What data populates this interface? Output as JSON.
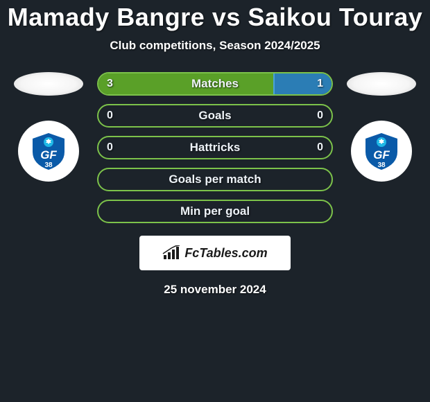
{
  "title": "Mamady Bangre vs Saikou Touray",
  "subtitle": "Club competitions, Season 2024/2025",
  "date": "25 november 2024",
  "brand": "FcTables.com",
  "colors": {
    "border_green": "#7cc24a",
    "fill_green": "#5aa028",
    "border_blue": "#4aa3d8",
    "fill_blue": "#2b7db5",
    "background": "#1c232a",
    "club_blue": "#0a5aa8",
    "club_cyan": "#1fb8e6"
  },
  "club": {
    "text_top": "GF",
    "text_num": "38"
  },
  "bars": [
    {
      "label": "Matches",
      "left_val": "3",
      "right_val": "1",
      "left_pct": 75,
      "right_pct": 25,
      "has_values": true
    },
    {
      "label": "Goals",
      "left_val": "0",
      "right_val": "0",
      "left_pct": 0,
      "right_pct": 0,
      "has_values": true
    },
    {
      "label": "Hattricks",
      "left_val": "0",
      "right_val": "0",
      "left_pct": 0,
      "right_pct": 0,
      "has_values": true
    },
    {
      "label": "Goals per match",
      "left_val": "",
      "right_val": "",
      "left_pct": 0,
      "right_pct": 0,
      "has_values": false
    },
    {
      "label": "Min per goal",
      "left_val": "",
      "right_val": "",
      "left_pct": 0,
      "right_pct": 0,
      "has_values": false
    }
  ]
}
